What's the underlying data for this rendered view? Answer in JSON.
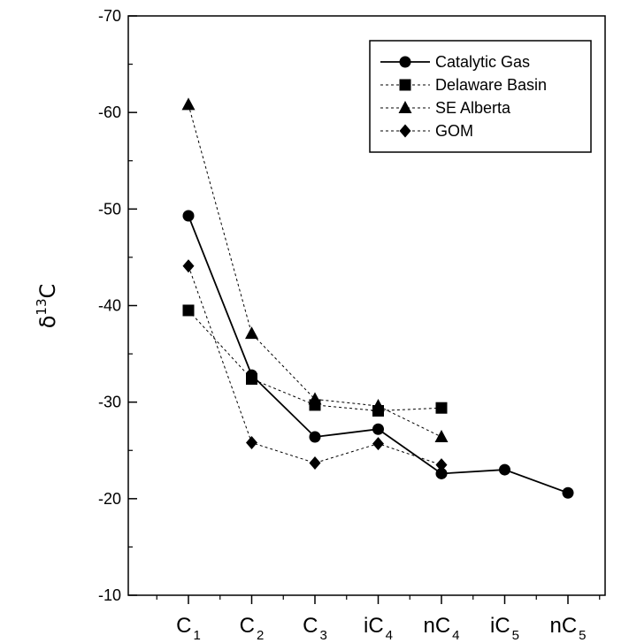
{
  "chart_data": {
    "type": "line",
    "categories": [
      {
        "base": "C",
        "sub": "1"
      },
      {
        "base": "C",
        "sub": "2"
      },
      {
        "base": "C",
        "sub": "3"
      },
      {
        "base": "iC",
        "sub": "4"
      },
      {
        "base": "nC",
        "sub": "4"
      },
      {
        "base": "iC",
        "sub": "5"
      },
      {
        "base": "nC",
        "sub": "5"
      }
    ],
    "ylabel": {
      "prefix": "δ",
      "sup": "13",
      "main": "C"
    },
    "ylim": [
      -10,
      -70
    ],
    "y_inverted": true,
    "y_ticks": [
      -70,
      -60,
      -50,
      -40,
      -30,
      -20,
      -10
    ],
    "y_tick_labels": [
      "-70",
      "-60",
      "-50",
      "-40",
      "-30",
      "-20",
      "-10"
    ],
    "legend_position": "top-right",
    "grid": false,
    "series": [
      {
        "name": "Catalytic Gas",
        "marker": "circle",
        "line": "solid",
        "values": [
          -49.3,
          -32.8,
          -26.4,
          -27.2,
          -22.6,
          -23.0,
          -20.6
        ]
      },
      {
        "name": "Delaware Basin",
        "marker": "square",
        "line": "dashed",
        "values": [
          -39.5,
          -32.4,
          -29.7,
          -29.1,
          -29.4,
          null,
          null
        ]
      },
      {
        "name": "SE Alberta",
        "marker": "triangle",
        "line": "dashed",
        "values": [
          -60.8,
          -37.1,
          -30.3,
          -29.6,
          -26.4,
          null,
          null
        ]
      },
      {
        "name": "GOM",
        "marker": "diamond",
        "line": "dashed",
        "values": [
          -44.1,
          -25.8,
          -23.7,
          -25.7,
          -23.5,
          null,
          null
        ]
      }
    ]
  }
}
